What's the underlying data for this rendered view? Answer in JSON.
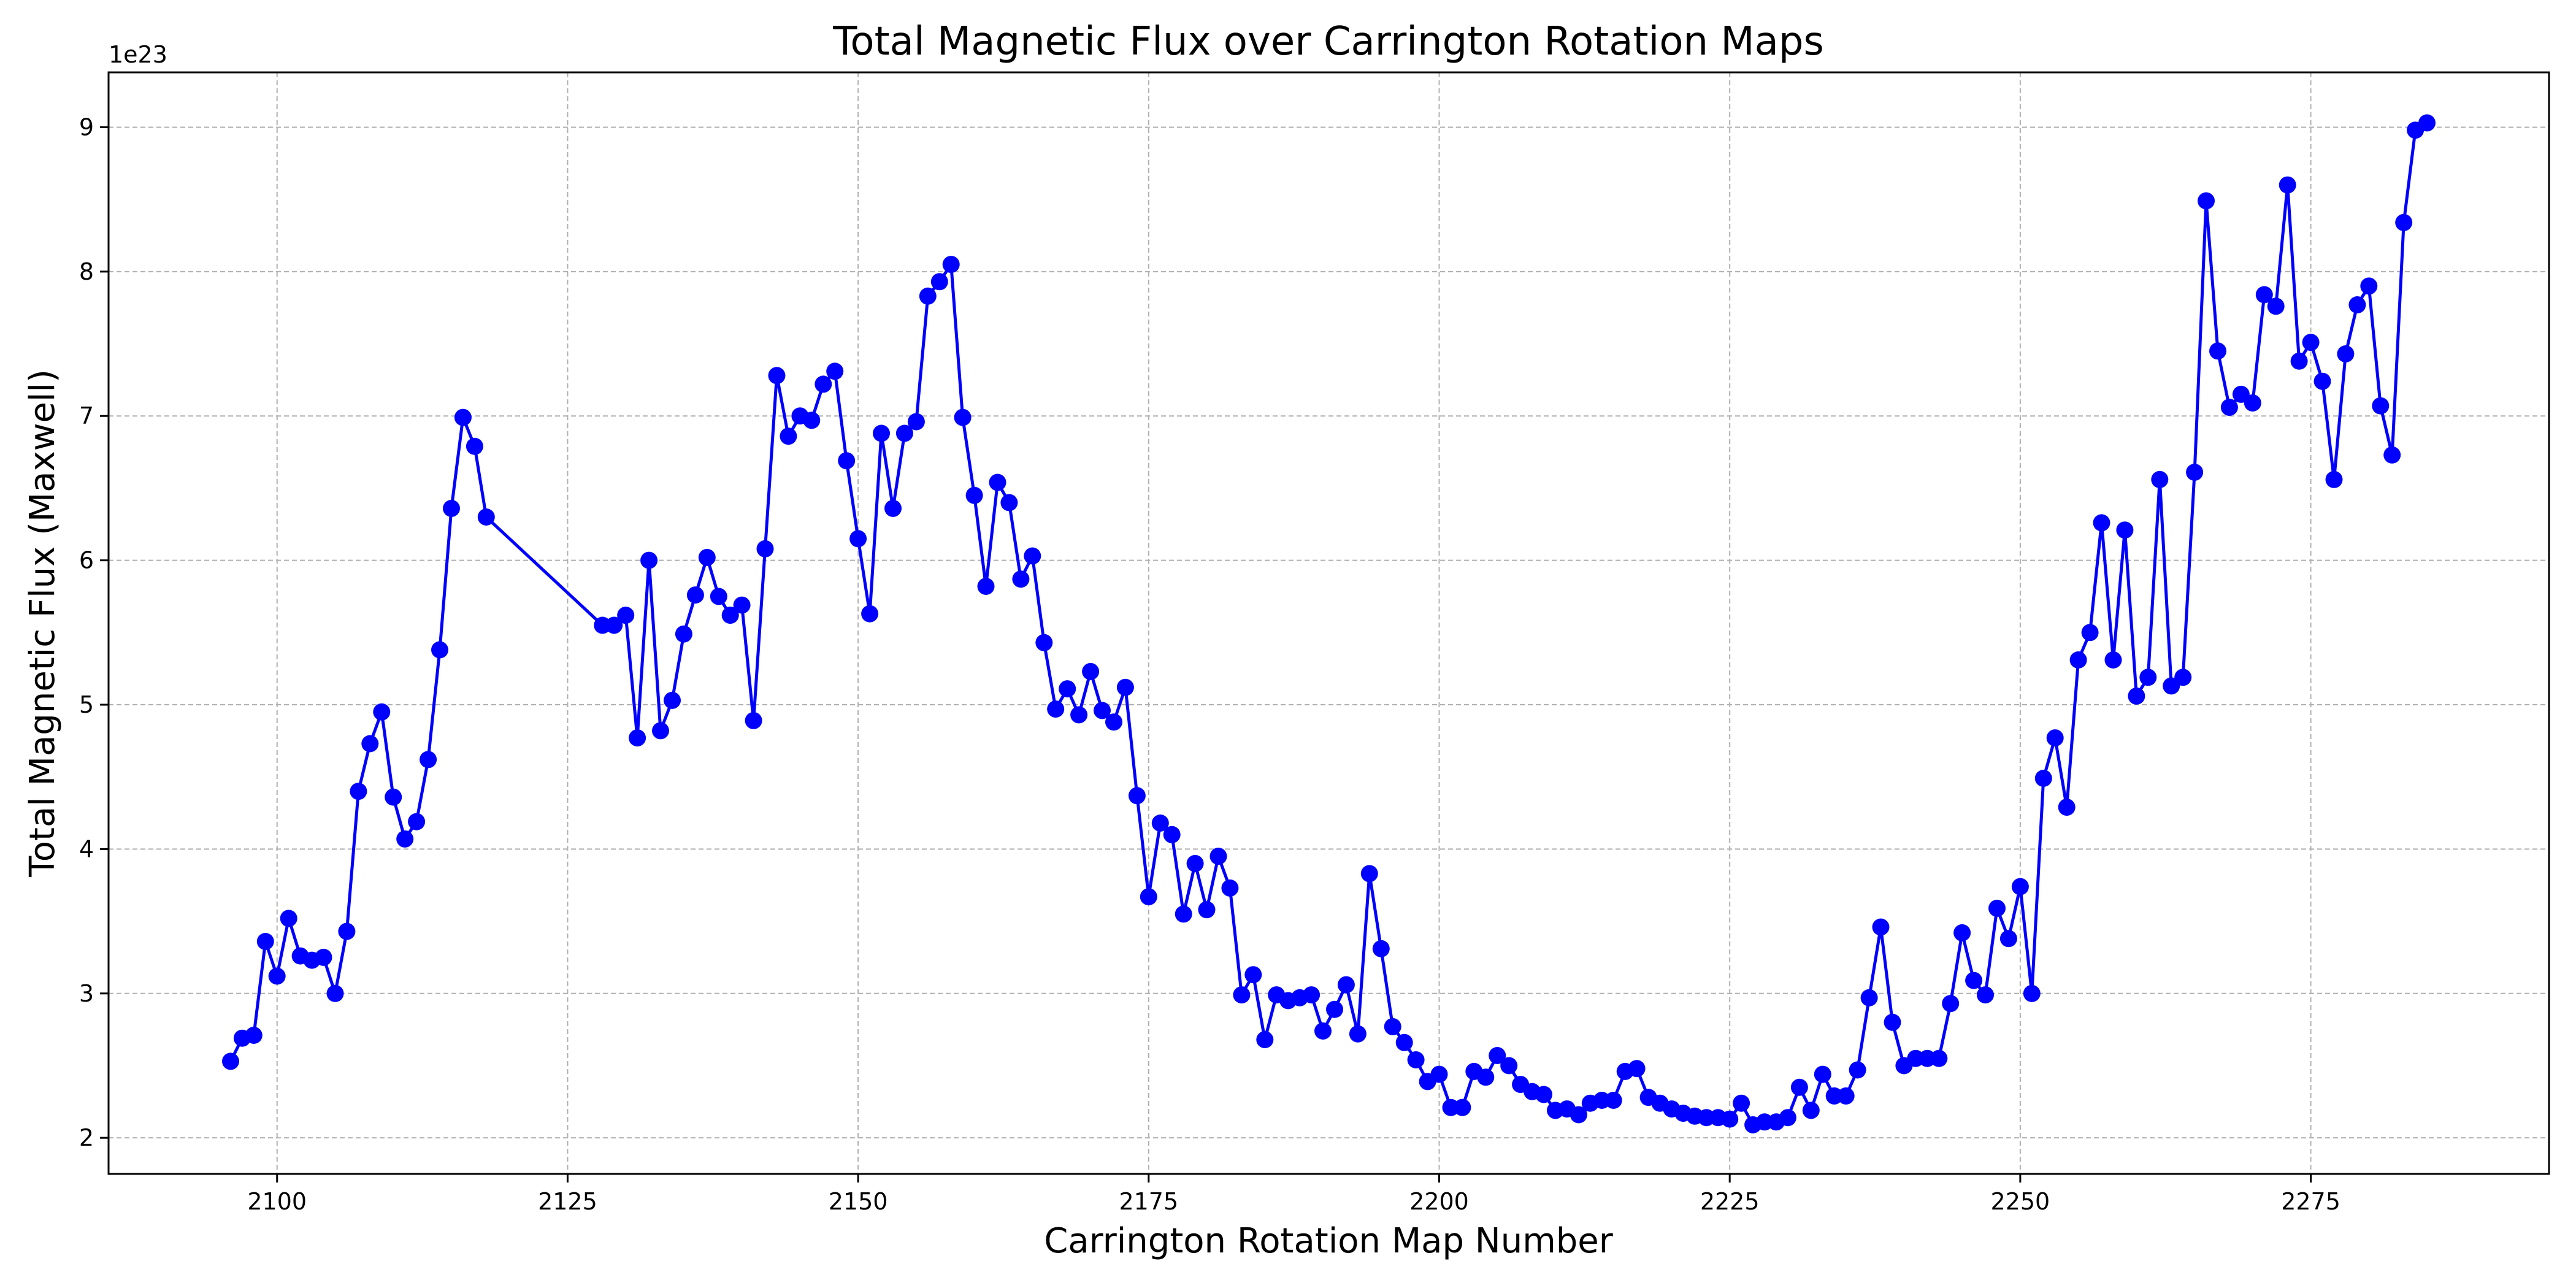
{
  "chart_data": {
    "type": "line",
    "title": "Total Magnetic Flux over Carrington Rotation Maps",
    "xlabel": "Carrington Rotation Map Number",
    "ylabel": "Total Magnetic Flux (Maxwell)",
    "y_offset_text": "1e23",
    "xlim": [
      2085.5,
      2295.5
    ],
    "ylim": [
      1.75,
      9.38
    ],
    "xticks": [
      2100,
      2125,
      2150,
      2175,
      2200,
      2225,
      2250,
      2275
    ],
    "yticks": [
      2,
      3,
      4,
      5,
      6,
      7,
      8,
      9
    ],
    "grid": true,
    "line_color": "#0000ff",
    "marker": "circle",
    "x": [
      2096,
      2097,
      2098,
      2099,
      2100,
      2101,
      2102,
      2103,
      2104,
      2105,
      2106,
      2107,
      2108,
      2109,
      2110,
      2111,
      2112,
      2113,
      2114,
      2115,
      2116,
      2117,
      2118,
      2128,
      2129,
      2130,
      2131,
      2132,
      2133,
      2134,
      2135,
      2136,
      2137,
      2138,
      2139,
      2140,
      2141,
      2142,
      2143,
      2144,
      2145,
      2146,
      2147,
      2148,
      2149,
      2150,
      2151,
      2152,
      2153,
      2154,
      2155,
      2156,
      2157,
      2158,
      2159,
      2160,
      2161,
      2162,
      2163,
      2164,
      2165,
      2166,
      2167,
      2168,
      2169,
      2170,
      2171,
      2172,
      2173,
      2174,
      2175,
      2176,
      2177,
      2178,
      2179,
      2180,
      2181,
      2182,
      2183,
      2184,
      2185,
      2186,
      2187,
      2188,
      2189,
      2190,
      2191,
      2192,
      2193,
      2194,
      2195,
      2196,
      2197,
      2198,
      2199,
      2200,
      2201,
      2202,
      2203,
      2204,
      2205,
      2206,
      2207,
      2208,
      2209,
      2210,
      2211,
      2212,
      2213,
      2214,
      2215,
      2216,
      2217,
      2218,
      2219,
      2220,
      2221,
      2222,
      2223,
      2224,
      2225,
      2226,
      2227,
      2228,
      2229,
      2230,
      2231,
      2232,
      2233,
      2234,
      2235,
      2236,
      2237,
      2238,
      2239,
      2240,
      2241,
      2242,
      2243,
      2244,
      2245,
      2246,
      2247,
      2248,
      2249,
      2250,
      2251,
      2252,
      2253,
      2254,
      2255,
      2256,
      2257,
      2258,
      2259,
      2260,
      2261,
      2262,
      2263,
      2264,
      2265,
      2266,
      2267,
      2268,
      2269,
      2270,
      2271,
      2272,
      2273,
      2274,
      2275,
      2276,
      2277,
      2278,
      2279,
      2280,
      2281,
      2282,
      2283,
      2284,
      2285
    ],
    "y": [
      2.53,
      2.69,
      2.71,
      3.36,
      3.12,
      3.52,
      3.26,
      3.23,
      3.25,
      3.0,
      3.43,
      4.4,
      4.73,
      4.95,
      4.36,
      4.07,
      4.19,
      4.62,
      5.38,
      6.36,
      6.99,
      6.79,
      6.3,
      5.55,
      5.55,
      5.62,
      4.77,
      6.0,
      4.82,
      5.03,
      5.49,
      5.76,
      6.02,
      5.75,
      5.62,
      5.69,
      4.89,
      6.08,
      7.28,
      6.86,
      7.0,
      6.97,
      7.22,
      7.31,
      6.69,
      6.15,
      5.63,
      6.88,
      6.36,
      6.88,
      6.96,
      7.83,
      7.93,
      8.05,
      6.99,
      6.45,
      5.82,
      6.54,
      6.4,
      5.87,
      6.03,
      5.43,
      4.97,
      5.11,
      4.93,
      5.23,
      4.96,
      4.88,
      5.12,
      4.37,
      3.67,
      4.18,
      4.1,
      3.55,
      3.9,
      3.58,
      3.95,
      3.73,
      2.99,
      3.13,
      2.68,
      2.99,
      2.95,
      2.97,
      2.99,
      2.74,
      2.89,
      3.06,
      2.72,
      3.83,
      3.31,
      2.77,
      2.66,
      2.54,
      2.39,
      2.44,
      2.21,
      2.21,
      2.46,
      2.42,
      2.57,
      2.5,
      2.37,
      2.32,
      2.3,
      2.19,
      2.2,
      2.16,
      2.24,
      2.26,
      2.26,
      2.46,
      2.48,
      2.28,
      2.24,
      2.2,
      2.17,
      2.15,
      2.14,
      2.14,
      2.13,
      2.24,
      2.09,
      2.11,
      2.11,
      2.14,
      2.35,
      2.19,
      2.44,
      2.29,
      2.29,
      2.47,
      2.97,
      3.46,
      2.8,
      2.5,
      2.55,
      2.55,
      2.55,
      2.93,
      3.42,
      3.09,
      2.99,
      3.59,
      3.38,
      3.74,
      3.0,
      4.49,
      4.77,
      4.29,
      5.31,
      5.5,
      6.26,
      5.31,
      6.21,
      5.06,
      5.19,
      6.56,
      5.13,
      5.19,
      6.61,
      8.49,
      7.45,
      7.06,
      7.15,
      7.09,
      7.84,
      7.76,
      8.6,
      7.38,
      7.51,
      7.24,
      6.56,
      7.43,
      7.77,
      7.9,
      7.07,
      6.73,
      8.34,
      8.98,
      9.03
    ]
  }
}
